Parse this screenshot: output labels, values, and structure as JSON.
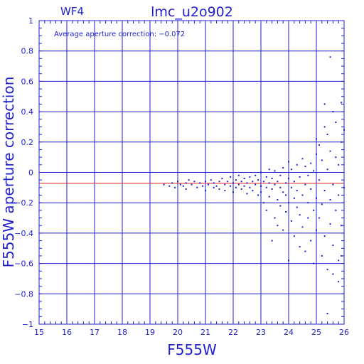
{
  "chart_data": {
    "type": "scatter",
    "panel_label": "WF4",
    "title": "lmc_u2o902",
    "annotation": "Average aperture correction: −0.072",
    "xlabel": "F555W",
    "ylabel": "F555W aperture correction",
    "xlim": [
      15,
      26
    ],
    "ylim": [
      -1,
      1
    ],
    "xticks": [
      15,
      16,
      17,
      18,
      19,
      20,
      21,
      22,
      23,
      24,
      25,
      26
    ],
    "yticks": [
      {
        "v": 1,
        "label": "1"
      },
      {
        "v": 0.8,
        "label": "0.8"
      },
      {
        "v": 0.6,
        "label": "0.6"
      },
      {
        "v": 0.4,
        "label": "0.4"
      },
      {
        "v": 0.2,
        "label": "0.2"
      },
      {
        "v": 0,
        "label": "0"
      },
      {
        "v": -0.2,
        "label": "−0.2"
      },
      {
        "v": -0.4,
        "label": "−0.4"
      },
      {
        "v": -0.6,
        "label": "−0.6"
      },
      {
        "v": -0.8,
        "label": "−0.8"
      },
      {
        "v": -1,
        "label": "−1"
      }
    ],
    "grid": true,
    "average_line": -0.072,
    "colors": {
      "axes": "#1f1fcf",
      "points": "#1f1fcf",
      "average_line": "#e02020"
    },
    "series": [
      {
        "points": [
          [
            19.5,
            -0.08
          ],
          [
            19.7,
            -0.09
          ],
          [
            19.8,
            -0.07
          ],
          [
            19.9,
            -0.1
          ],
          [
            20.0,
            -0.06
          ],
          [
            20.1,
            -0.08
          ],
          [
            20.2,
            -0.09
          ],
          [
            20.3,
            -0.07
          ],
          [
            20.3,
            -0.11
          ],
          [
            20.4,
            -0.05
          ],
          [
            20.5,
            -0.08
          ],
          [
            20.6,
            -0.06
          ],
          [
            20.7,
            -0.1
          ],
          [
            20.8,
            -0.07
          ],
          [
            20.9,
            -0.09
          ],
          [
            21.0,
            -0.06
          ],
          [
            21.0,
            -0.12
          ],
          [
            21.1,
            -0.08
          ],
          [
            21.2,
            -0.05
          ],
          [
            21.3,
            -0.1
          ],
          [
            21.3,
            -0.07
          ],
          [
            21.4,
            -0.09
          ],
          [
            21.5,
            -0.06
          ],
          [
            21.5,
            -0.11
          ],
          [
            21.6,
            -0.04
          ],
          [
            21.7,
            -0.08
          ],
          [
            21.7,
            -0.12
          ],
          [
            21.8,
            -0.06
          ],
          [
            21.9,
            -0.09
          ],
          [
            21.9,
            -0.03
          ],
          [
            22.0,
            -0.07
          ],
          [
            22.0,
            -0.13
          ],
          [
            22.1,
            -0.05
          ],
          [
            22.1,
            -0.1
          ],
          [
            22.2,
            -0.08
          ],
          [
            22.2,
            -0.02
          ],
          [
            22.3,
            -0.11
          ],
          [
            22.3,
            -0.06
          ],
          [
            22.4,
            -0.09
          ],
          [
            22.4,
            -0.04
          ],
          [
            22.5,
            -0.14
          ],
          [
            22.5,
            -0.07
          ],
          [
            22.6,
            -0.03
          ],
          [
            22.6,
            -0.1
          ],
          [
            22.7,
            -0.06
          ],
          [
            22.7,
            -0.12
          ],
          [
            22.8,
            -0.02
          ],
          [
            22.8,
            -0.08
          ],
          [
            22.9,
            -0.15
          ],
          [
            22.9,
            -0.05
          ],
          [
            23.0,
            -0.09
          ],
          [
            23.0,
            0.0
          ],
          [
            23.0,
            -0.13
          ],
          [
            23.1,
            -0.06
          ],
          [
            23.1,
            -0.2
          ],
          [
            23.2,
            -0.03
          ],
          [
            23.2,
            -0.1
          ],
          [
            23.2,
            -0.25
          ],
          [
            23.3,
            -0.07
          ],
          [
            23.3,
            0.02
          ],
          [
            23.3,
            -0.16
          ],
          [
            23.4,
            -0.45
          ],
          [
            23.4,
            -0.11
          ],
          [
            23.4,
            -0.04
          ],
          [
            23.5,
            -0.3
          ],
          [
            23.5,
            -0.08
          ],
          [
            23.5,
            0.01
          ],
          [
            23.6,
            -0.18
          ],
          [
            23.6,
            -0.06
          ],
          [
            23.6,
            -0.35
          ],
          [
            23.7,
            -0.1
          ],
          [
            23.7,
            -0.02
          ],
          [
            23.7,
            -0.22
          ],
          [
            23.8,
            -0.13
          ],
          [
            23.8,
            0.03
          ],
          [
            23.8,
            -0.38
          ],
          [
            23.9,
            -0.07
          ],
          [
            23.9,
            -0.26
          ],
          [
            23.9,
            -0.15
          ],
          [
            24.0,
            -0.58
          ],
          [
            24.0,
            -0.04
          ],
          [
            24.0,
            -0.2
          ],
          [
            24.0,
            0.07
          ],
          [
            24.1,
            -0.1
          ],
          [
            24.1,
            -0.32
          ],
          [
            24.1,
            0.02
          ],
          [
            24.2,
            -0.17
          ],
          [
            24.2,
            -0.06
          ],
          [
            24.2,
            -0.42
          ],
          [
            24.3,
            0.05
          ],
          [
            24.3,
            -0.23
          ],
          [
            24.3,
            -0.12
          ],
          [
            24.4,
            -0.49
          ],
          [
            24.4,
            -0.03
          ],
          [
            24.4,
            -0.28
          ],
          [
            24.5,
            0.09
          ],
          [
            24.5,
            -0.15
          ],
          [
            24.5,
            -0.36
          ],
          [
            24.6,
            -0.08
          ],
          [
            24.6,
            0.04
          ],
          [
            24.6,
            -0.52
          ],
          [
            24.7,
            -0.2
          ],
          [
            24.7,
            -0.02
          ],
          [
            24.7,
            -0.3
          ],
          [
            24.8,
            0.06
          ],
          [
            24.8,
            -0.11
          ],
          [
            24.8,
            -0.45
          ],
          [
            24.9,
            -0.25
          ],
          [
            24.9,
            0.01
          ],
          [
            24.9,
            -0.6
          ],
          [
            25.0,
            0.12
          ],
          [
            25.0,
            -0.17
          ],
          [
            25.0,
            -0.38
          ],
          [
            25.0,
            0.22
          ],
          [
            25.1,
            -0.05
          ],
          [
            25.1,
            -0.3
          ],
          [
            25.1,
            0.18
          ],
          [
            25.2,
            -0.55
          ],
          [
            25.2,
            0.08
          ],
          [
            25.2,
            -0.21
          ],
          [
            25.3,
            0.3
          ],
          [
            25.3,
            -0.12
          ],
          [
            25.3,
            -0.42
          ],
          [
            25.4,
            0.02
          ],
          [
            25.4,
            -0.64
          ],
          [
            25.4,
            0.25
          ],
          [
            25.5,
            0.76
          ],
          [
            25.5,
            -0.18
          ],
          [
            25.5,
            0.14
          ],
          [
            25.5,
            -0.34
          ],
          [
            25.6,
            0.4
          ],
          [
            25.6,
            -0.08
          ],
          [
            25.6,
            -0.48
          ],
          [
            25.7,
            0.1
          ],
          [
            25.7,
            -0.25
          ],
          [
            25.7,
            0.33
          ],
          [
            25.8,
            -0.58
          ],
          [
            25.8,
            0.05
          ],
          [
            25.8,
            -0.15
          ],
          [
            25.9,
            0.46
          ],
          [
            25.9,
            -0.35
          ],
          [
            25.9,
            0.2
          ],
          [
            26.0,
            -0.1
          ],
          [
            26.0,
            0.28
          ],
          [
            25.4,
            -0.93
          ],
          [
            25.8,
            -0.72
          ],
          [
            25.3,
            0.45
          ],
          [
            25.6,
            -0.67
          ],
          [
            25.9,
            -0.55
          ]
        ]
      }
    ]
  }
}
